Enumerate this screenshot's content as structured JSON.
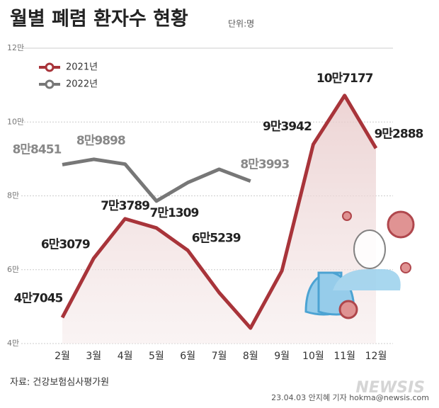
{
  "chart_data": {
    "type": "line",
    "title": "월별 폐렴 환자수 현황",
    "unit": "단위:명",
    "source": "자료: 건강보험심사평가원",
    "credit": "23.04.03 안지혜 기자 hokma@newsis.com",
    "watermark": "NEWSIS",
    "categories": [
      "2월",
      "3월",
      "4월",
      "5월",
      "6월",
      "7월",
      "8월",
      "9월",
      "10월",
      "11월",
      "12월"
    ],
    "series": [
      {
        "name": "2021년",
        "color": "#a8343a",
        "values": [
          47045,
          63079,
          73789,
          71309,
          65239,
          53800,
          44200,
          59700,
          93942,
          107177,
          92888
        ],
        "value_labels": [
          "4만7045",
          "6만3079",
          "7만3789",
          "7만1309",
          "6만5239",
          null,
          null,
          null,
          "9만3942",
          "10만7177",
          "9만2888"
        ]
      },
      {
        "name": "2022년",
        "color": "#777777",
        "values": [
          88451,
          89898,
          88600,
          78600,
          83600,
          87200,
          83993,
          null,
          null,
          null,
          null
        ],
        "value_labels": [
          "8만8451",
          "8만9898",
          null,
          null,
          null,
          null,
          "8만3993",
          null,
          null,
          null,
          null
        ]
      }
    ],
    "ylim": [
      40000,
      120000
    ],
    "yticks": [
      {
        "value": 40000,
        "label": "4만"
      },
      {
        "value": 60000,
        "label": "6만"
      },
      {
        "value": 80000,
        "label": "8만"
      },
      {
        "value": 100000,
        "label": "10만"
      },
      {
        "value": 120000,
        "label": "12만"
      }
    ],
    "grid": true,
    "legend": "top-left"
  }
}
